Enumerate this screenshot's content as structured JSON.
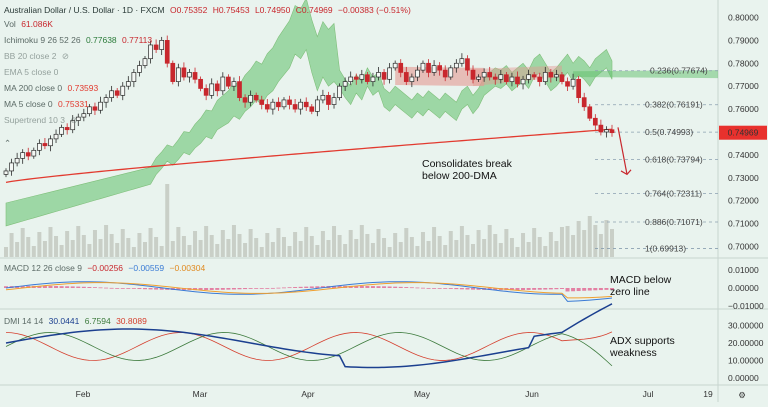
{
  "header": {
    "symbol_title": "Australian Dollar / U.S. Dollar · 1D · FXCM",
    "ohlc": {
      "o": "O0.75352",
      "h": "H0.75453",
      "l": "L0.74950",
      "c": "C0.74969",
      "chg": "−0.00383 (−0.51%)"
    },
    "volume_label": "Vol",
    "volume_value": "61.086K",
    "ichimoku_label": "Ichimoku 9 26 52 26",
    "ichimoku_v1": "0.77638",
    "ichimoku_v2": "0.77113",
    "bb_label": "BB 20 close 2",
    "ema_label": "EMA 5 close 0",
    "ma200_label": "MA 200 close 0",
    "ma200_value": "0.73593",
    "ma5_label": "MA 5 close 0",
    "ma5_value": "0.75331",
    "supertrend_label": "Supertrend 10 3"
  },
  "colors": {
    "bg": "#e9f3ee",
    "up": "#2b2b2b",
    "down": "#c8272d",
    "ma200": "#e23a2f",
    "cloud_green": "#5fbf6a",
    "cloud_red": "#e49a92",
    "price_tag": "#e8312d",
    "macd_blue": "#3a7bd5",
    "macd_orange": "#f0a030",
    "hist": "#e05a8a",
    "adx": "#1b3f8f",
    "di_plus": "#3c7a3c",
    "di_minus": "#d5402f"
  },
  "chart_data": {
    "type": "candlestick",
    "price_axis": {
      "min": 0.695,
      "max": 0.805,
      "ticks": [
        "0.80000",
        "0.79000",
        "0.78000",
        "0.77000",
        "0.76000",
        "0.75000",
        "0.74000",
        "0.73000",
        "0.72000",
        "0.71000",
        "0.70000"
      ]
    },
    "last_price_label": "0.74969",
    "x_labels": [
      "Feb",
      "Mar",
      "Apr",
      "May",
      "Jun",
      "Jul",
      "19"
    ],
    "fibonacci": [
      {
        "label": "0.236(0.77674)",
        "value": 0.77674
      },
      {
        "label": "0.382(0.76191)",
        "value": 0.76191
      },
      {
        "label": "0.5(0.74993)",
        "value": 0.74993
      },
      {
        "label": "0.618(0.73794)",
        "value": 0.73794
      },
      {
        "label": "0.764(0.72311)",
        "value": 0.72311
      },
      {
        "label": "0.886(0.71071)",
        "value": 0.71071
      },
      {
        "label": "1(0.69913)",
        "value": 0.69913
      }
    ],
    "annotations": {
      "price": "Consolidates break\nbelow 200-DMA",
      "macd": "MACD below\nzero line",
      "adx": "ADX supports\nweakness"
    },
    "macd": {
      "label": "MACD 12 26 close 9",
      "v1": "−0.00256",
      "v2": "−0.00559",
      "v3": "−0.00304",
      "axis_ticks": [
        "0.01000",
        "0.00000",
        "−0.01000"
      ]
    },
    "dmi": {
      "label": "DMI 14 14",
      "v1": "30.0441",
      "v2": "6.7594",
      "v3": "30.8089",
      "axis_ticks": [
        "30.00000",
        "20.00000",
        "10.00000",
        "0.00000"
      ]
    },
    "closes": [
      0.733,
      0.7365,
      0.7385,
      0.741,
      0.7395,
      0.742,
      0.745,
      0.744,
      0.747,
      0.749,
      0.752,
      0.751,
      0.755,
      0.7565,
      0.758,
      0.761,
      0.7595,
      0.763,
      0.765,
      0.768,
      0.766,
      0.77,
      0.772,
      0.776,
      0.779,
      0.782,
      0.788,
      0.786,
      0.79,
      0.78,
      0.772,
      0.778,
      0.774,
      0.776,
      0.773,
      0.769,
      0.766,
      0.771,
      0.768,
      0.774,
      0.77,
      0.772,
      0.765,
      0.763,
      0.766,
      0.764,
      0.762,
      0.76,
      0.763,
      0.761,
      0.764,
      0.762,
      0.76,
      0.763,
      0.761,
      0.759,
      0.764,
      0.766,
      0.762,
      0.765,
      0.77,
      0.772,
      0.774,
      0.773,
      0.775,
      0.772,
      0.774,
      0.776,
      0.773,
      0.778,
      0.78,
      0.776,
      0.772,
      0.774,
      0.777,
      0.78,
      0.776,
      0.779,
      0.777,
      0.774,
      0.778,
      0.78,
      0.782,
      0.777,
      0.773,
      0.774,
      0.776,
      0.774,
      0.773,
      0.775,
      0.772,
      0.774,
      0.771,
      0.773,
      0.775,
      0.774,
      0.772,
      0.776,
      0.774,
      0.775,
      0.772,
      0.77,
      0.773,
      0.765,
      0.761,
      0.756,
      0.753,
      0.75,
      0.751,
      0.7497
    ]
  }
}
